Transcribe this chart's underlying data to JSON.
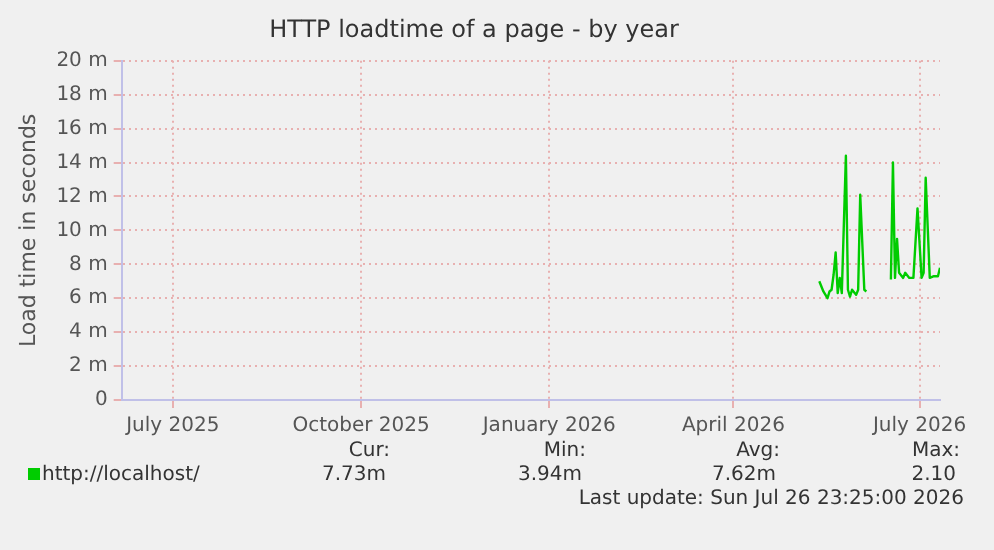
{
  "chart_data": {
    "type": "line",
    "title": "HTTP loadtime of a page - by year",
    "ylabel": "Load time in seconds",
    "x": [
      "2026-05-28",
      "2026-05-30",
      "2026-06-01",
      "2026-06-02",
      "2026-06-03",
      "2026-06-04",
      "2026-06-05",
      "2026-06-06",
      "2026-06-07",
      "2026-06-08",
      "2026-06-10",
      "2026-06-11",
      "2026-06-12",
      "2026-06-13",
      "2026-06-15",
      "2026-06-16",
      "2026-06-17",
      "2026-06-19",
      "2026-06-20",
      "2026-06-25",
      "2026-07-02",
      "2026-07-03",
      "2026-07-04",
      "2026-07-05",
      "2026-07-06",
      "2026-07-08",
      "2026-07-09",
      "2026-07-11",
      "2026-07-13",
      "2026-07-15",
      "2026-07-17",
      "2026-07-18",
      "2026-07-19",
      "2026-07-21",
      "2026-07-23",
      "2026-07-25",
      "2026-07-26"
    ],
    "series": [
      {
        "name": "http://localhost/",
        "color": "#00cc00",
        "values": [
          7.0,
          6.4,
          6.0,
          6.4,
          6.5,
          7.4,
          8.7,
          6.3,
          7.2,
          6.3,
          14.4,
          6.5,
          6.1,
          6.5,
          6.2,
          6.5,
          12.1,
          6.5,
          6.4,
          null,
          7.1,
          14.0,
          7.2,
          9.5,
          7.5,
          7.2,
          7.5,
          7.2,
          7.2,
          11.3,
          7.2,
          7.5,
          13.1,
          7.2,
          7.3,
          7.3,
          7.8
        ]
      }
    ],
    "ylim": [
      0,
      20
    ],
    "yticks": [
      0,
      {
        "value": 2,
        "label": "2 m"
      },
      {
        "value": 4,
        "label": "4 m"
      },
      {
        "value": 6,
        "label": "6 m"
      },
      {
        "value": 8,
        "label": "8 m"
      },
      {
        "value": 10,
        "label": "10 m"
      },
      {
        "value": 12,
        "label": "12 m"
      },
      {
        "value": 14,
        "label": "14 m"
      },
      {
        "value": 16,
        "label": "16 m"
      },
      {
        "value": 18,
        "label": "18 m"
      },
      {
        "value": 20,
        "label": "20 m"
      }
    ],
    "xlim": [
      "2025-06-21",
      "2026-07-26"
    ],
    "xticks": [
      {
        "value": "2025-07-16",
        "label": "July 2025"
      },
      {
        "value": "2025-10-16",
        "label": "October 2025"
      },
      {
        "value": "2026-01-16",
        "label": "January 2026"
      },
      {
        "value": "2026-04-16",
        "label": "April 2026"
      },
      {
        "value": "2026-07-16",
        "label": "July 2026"
      }
    ],
    "grid": true,
    "legend": "bottom left",
    "marker": "none",
    "line_style": "solid",
    "annotations": [
      "Cur:",
      "7.73m",
      "Min:",
      "3.94m",
      "Avg:",
      "7.62m",
      "Max:",
      "2.10",
      "Last update: Sun Jul 26 23:25:00 2026"
    ]
  }
}
